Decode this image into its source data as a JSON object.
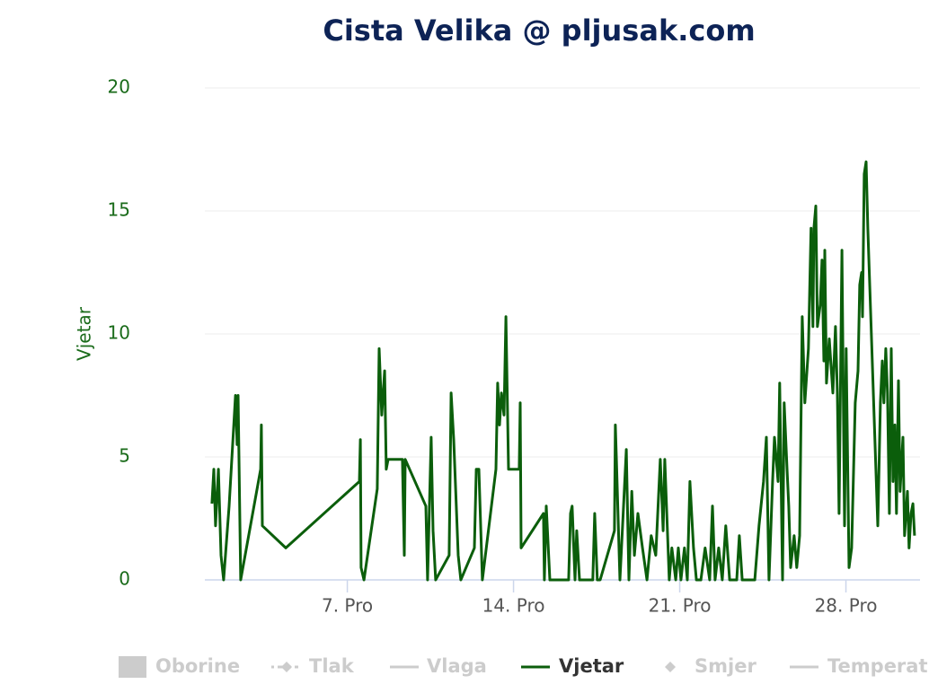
{
  "chart_data": {
    "type": "line",
    "title": "Cista Velika @ pljusak.com",
    "y_label": "Vjetar",
    "xlim": [
      1,
      31.12
    ],
    "xticks": [
      {
        "value": 7,
        "label": "7. Pro"
      },
      {
        "value": 14,
        "label": "14. Pro"
      },
      {
        "value": 21,
        "label": "21. Pro"
      },
      {
        "value": 28,
        "label": "28. Pro"
      }
    ],
    "ylim": [
      0,
      20
    ],
    "yticks": [
      0,
      5,
      10,
      15,
      20
    ],
    "grid": true,
    "series": [
      {
        "name": "Vjetar",
        "color": "#0b5e0b",
        "x": [
          1.3,
          1.38,
          1.45,
          1.57,
          1.68,
          1.79,
          2.02,
          2.29,
          2.36,
          2.4,
          2.51,
          3.35,
          3.38,
          3.42,
          4.41,
          7.51,
          7.55,
          7.58,
          7.7,
          8.26,
          8.34,
          8.45,
          8.57,
          8.64,
          8.72,
          9.32,
          9.4,
          9.44,
          10.31,
          10.38,
          10.53,
          10.61,
          10.72,
          11.29,
          11.37,
          11.48,
          11.67,
          11.78,
          12.35,
          12.43,
          12.54,
          12.69,
          13.26,
          13.33,
          13.41,
          13.49,
          13.6,
          13.68,
          13.79,
          14.24,
          14.28,
          14.32,
          15.26,
          15.3,
          15.38,
          15.53,
          16.32,
          16.4,
          16.47,
          16.59,
          16.66,
          16.78,
          17.34,
          17.42,
          17.53,
          17.65,
          18.25,
          18.29,
          18.33,
          18.48,
          18.75,
          18.86,
          18.98,
          19.09,
          19.24,
          19.43,
          19.62,
          19.8,
          19.99,
          20.18,
          20.3,
          20.37,
          20.56,
          20.67,
          20.83,
          20.94,
          21.05,
          21.2,
          21.32,
          21.43,
          21.58,
          21.7,
          21.89,
          22.07,
          22.26,
          22.38,
          22.49,
          22.64,
          22.79,
          22.94,
          23.1,
          23.21,
          23.4,
          23.51,
          23.63,
          23.97,
          24.16,
          24.34,
          24.53,
          24.65,
          24.76,
          24.91,
          24.99,
          25.14,
          25.21,
          25.33,
          25.4,
          25.52,
          25.59,
          25.67,
          25.82,
          25.93,
          26.05,
          26.16,
          26.27,
          26.42,
          26.53,
          26.61,
          26.65,
          26.73,
          26.8,
          26.92,
          26.99,
          27.07,
          27.11,
          27.18,
          27.3,
          27.45,
          27.56,
          27.64,
          27.71,
          27.83,
          27.94,
          28.01,
          28.13,
          28.24,
          28.39,
          28.51,
          28.58,
          28.66,
          28.7,
          28.77,
          28.85,
          28.92,
          29.34,
          29.45,
          29.53,
          29.6,
          29.68,
          29.75,
          29.83,
          29.91,
          29.98,
          30.06,
          30.13,
          30.21,
          30.28,
          30.4,
          30.47,
          30.59,
          30.66,
          30.74,
          30.82,
          30.89
        ],
        "values": [
          3.1,
          4.5,
          2.2,
          4.5,
          1,
          0,
          3,
          7.5,
          5.5,
          7.5,
          0,
          4.5,
          6.3,
          2.2,
          1.3,
          4,
          5.7,
          0.5,
          0,
          3.7,
          9.4,
          6.7,
          8.5,
          4.5,
          4.9,
          4.9,
          1,
          4.9,
          3,
          0,
          5.8,
          2,
          0,
          1,
          7.6,
          5.7,
          1,
          0,
          1.3,
          4.5,
          4.5,
          0,
          4.5,
          8,
          6.3,
          7.6,
          6.7,
          10.7,
          4.5,
          4.5,
          7.2,
          1.3,
          2.7,
          0,
          3,
          0,
          0,
          2.7,
          3,
          0,
          2,
          0,
          0,
          2.7,
          0,
          0,
          2,
          6.3,
          5,
          0,
          5.3,
          0,
          3.6,
          1,
          2.7,
          1.3,
          0,
          1.8,
          1,
          4.9,
          2,
          4.9,
          0,
          1.3,
          0,
          1.3,
          0,
          1.3,
          0,
          4,
          1.3,
          0,
          0,
          1.3,
          0,
          3,
          0,
          1.3,
          0,
          2.2,
          0,
          0,
          0,
          1.8,
          0,
          0,
          0,
          2.2,
          4,
          5.8,
          0,
          4,
          5.8,
          4,
          8,
          0,
          7.2,
          4.5,
          3,
          0.5,
          1.8,
          0.5,
          1.8,
          10.7,
          7.2,
          9.4,
          14.3,
          10.3,
          14.3,
          15.2,
          10.3,
          11.2,
          13,
          8.9,
          13.4,
          8,
          9.8,
          7.6,
          10.3,
          7.6,
          2.7,
          13.4,
          2.2,
          9.4,
          0.5,
          1.3,
          7.2,
          8.5,
          12,
          12.5,
          10.7,
          16.5,
          17,
          14.3,
          2.2,
          7.2,
          8.9,
          7.2,
          9.4,
          7.6,
          2.7,
          9.4,
          4,
          6.3,
          2.7,
          8.1,
          3.6,
          5.8,
          1.8,
          3.6,
          1.3,
          2.7,
          3.1,
          1.8
        ]
      }
    ],
    "hidden_series": [
      {
        "name": "Oborine",
        "symbol": "column"
      },
      {
        "name": "Tlak",
        "symbol": "dash-diamond"
      },
      {
        "name": "Vlaga",
        "symbol": "line"
      },
      {
        "name": "Smjer",
        "symbol": "diamond"
      },
      {
        "name": "Temperatura",
        "symbol": "line"
      }
    ]
  }
}
